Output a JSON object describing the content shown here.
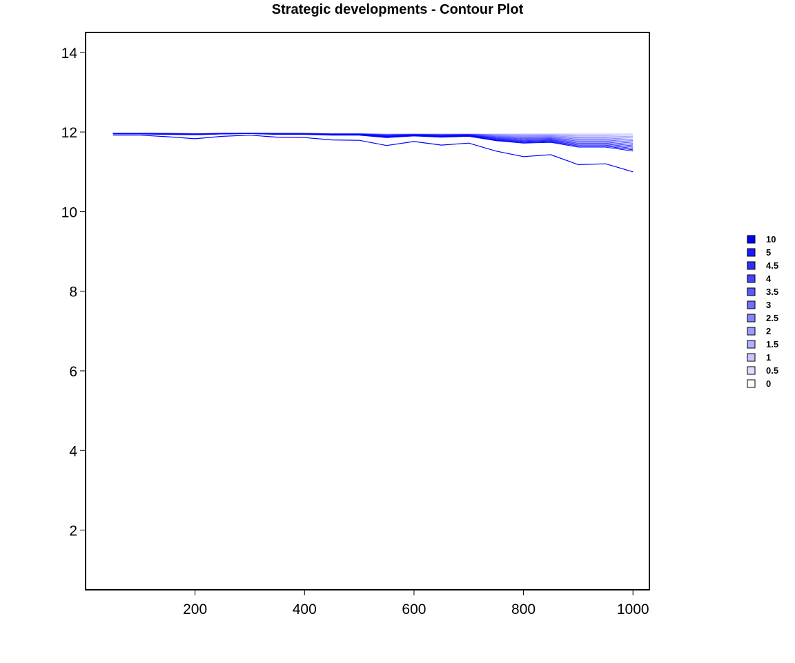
{
  "chart_data": {
    "type": "contour",
    "title": "Strategic developments - Contour Plot",
    "xlabel": "",
    "ylabel": "",
    "xlim": [
      0,
      1030
    ],
    "ylim": [
      0.5,
      14.5
    ],
    "x_ticks": [
      200,
      400,
      600,
      800,
      1000
    ],
    "y_ticks": [
      2,
      4,
      6,
      8,
      10,
      12,
      14
    ],
    "grid": false,
    "legend_position": "right",
    "line_color": "#0000ff",
    "x": [
      50,
      100,
      150,
      200,
      250,
      300,
      350,
      400,
      450,
      500,
      550,
      600,
      650,
      700,
      750,
      800,
      850,
      900,
      950,
      1000
    ],
    "contour_top": [
      11.97,
      11.97,
      11.97,
      11.96,
      11.97,
      11.97,
      11.97,
      11.97,
      11.96,
      11.96,
      11.95,
      11.95,
      11.95,
      11.95,
      11.95,
      11.95,
      11.95,
      11.95,
      11.95,
      11.95
    ],
    "contour_mid": [
      11.95,
      11.95,
      11.94,
      11.93,
      11.95,
      11.96,
      11.94,
      11.94,
      11.92,
      11.92,
      11.86,
      11.9,
      11.87,
      11.89,
      11.78,
      11.72,
      11.74,
      11.62,
      11.62,
      11.52
    ],
    "contour_bottom": [
      11.92,
      11.92,
      11.88,
      11.83,
      11.89,
      11.92,
      11.87,
      11.86,
      11.8,
      11.79,
      11.66,
      11.76,
      11.67,
      11.72,
      11.52,
      11.38,
      11.43,
      11.18,
      11.2,
      11.0
    ],
    "legend": {
      "labels": [
        "10",
        "5",
        "4.5",
        "4",
        "3.5",
        "3",
        "2.5",
        "2",
        "1.5",
        "1",
        "0.5",
        "0"
      ],
      "colors": [
        "#0000ff",
        "#1a1aff",
        "#2e2eff",
        "#4545ff",
        "#5a5aff",
        "#6f6fff",
        "#8484ff",
        "#9a9aff",
        "#b0b0ff",
        "#c6c6ff",
        "#dcdcff",
        "#ffffff"
      ]
    }
  }
}
